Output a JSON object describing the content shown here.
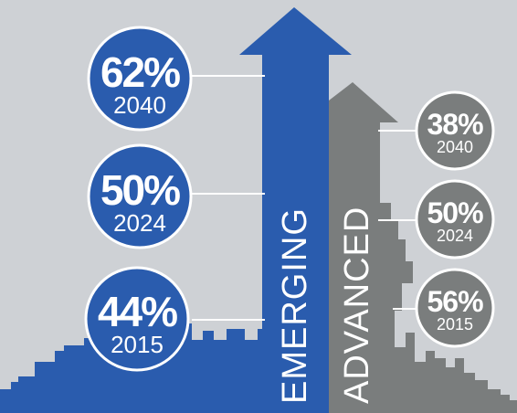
{
  "colors": {
    "background": "#ced1d5",
    "emerging_blue": "#2a5cae",
    "advanced_gray": "#7a7d7d",
    "circle_border": "#ffffff"
  },
  "emerging": {
    "label": "EMERGING",
    "stats": [
      {
        "percent": "62%",
        "year": "2040"
      },
      {
        "percent": "50%",
        "year": "2024"
      },
      {
        "percent": "44%",
        "year": "2015"
      }
    ]
  },
  "advanced": {
    "label": "ADVANCED",
    "stats": [
      {
        "percent": "38%",
        "year": "2040"
      },
      {
        "percent": "50%",
        "year": "2024"
      },
      {
        "percent": "56%",
        "year": "2015"
      }
    ]
  }
}
